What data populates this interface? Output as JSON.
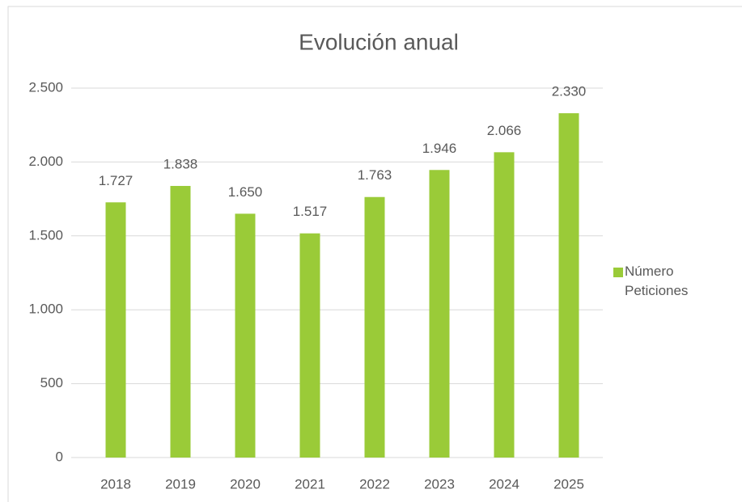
{
  "chart_data": {
    "type": "bar",
    "title": "Evolución anual",
    "categories": [
      "2018",
      "2019",
      "2020",
      "2021",
      "2022",
      "2023",
      "2024",
      "2025"
    ],
    "series": [
      {
        "name": "Número Peticiones",
        "color": "#9ACB38",
        "values": [
          1727,
          1838,
          1650,
          1517,
          1763,
          1946,
          2066,
          2330
        ],
        "value_labels": [
          "1.727",
          "1.838",
          "1.650",
          "1.517",
          "1.763",
          "1.946",
          "2.066",
          "2.330"
        ]
      }
    ],
    "ylim": [
      0,
      2500
    ],
    "yticks": [
      0,
      500,
      {
        "value": 1000,
        "label": "1.000"
      },
      {
        "value": 1500,
        "label": "1.500"
      },
      {
        "value": 2000,
        "label": "2.000"
      },
      {
        "value": 2500,
        "label": "2.500"
      }
    ],
    "grid": true,
    "legend": "right"
  }
}
